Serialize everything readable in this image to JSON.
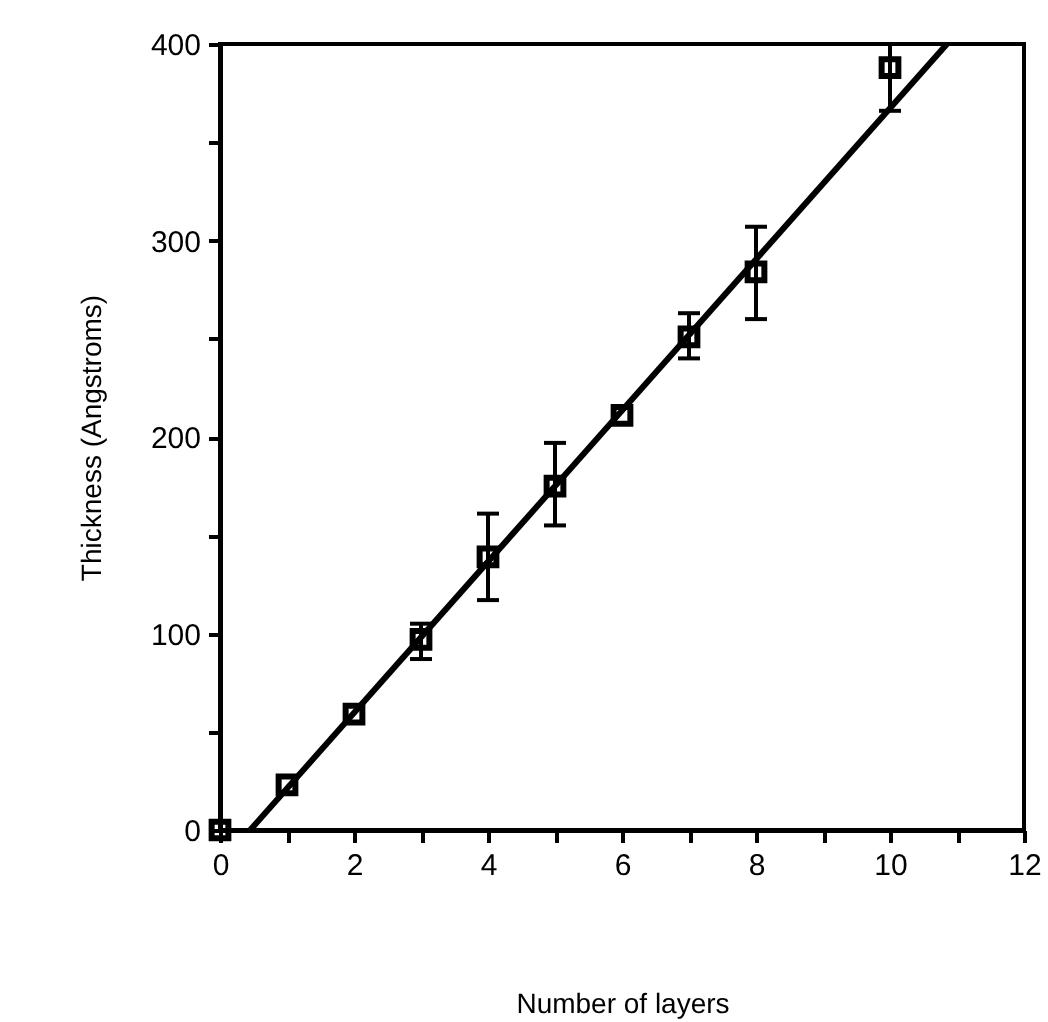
{
  "chart_data": {
    "type": "scatter",
    "xlabel": "Number of layers",
    "ylabel": "Thickness (Angstroms)",
    "x": [
      0,
      1,
      2,
      3,
      4,
      5,
      6,
      7,
      8,
      10
    ],
    "series": [
      {
        "color": "#000000",
        "marker": "square",
        "values": [
          0,
          23,
          59,
          97,
          139,
          175,
          211,
          251,
          284,
          388
        ],
        "errors": [
          null,
          null,
          null,
          [
            87,
            105
          ],
          [
            117,
            161
          ],
          [
            155,
            197
          ],
          null,
          [
            240,
            263
          ],
          [
            260,
            307
          ],
          [
            366,
            400
          ]
        ]
      },
      {
        "type": "line",
        "color": "#000000",
        "x": [
          0.45,
          10.85
        ],
        "values": [
          0,
          400
        ],
        "line_style": "solid"
      }
    ],
    "xlim": [
      0,
      12
    ],
    "xticks": [
      0,
      {
        "value": 1,
        "label": null
      },
      2,
      {
        "value": 3,
        "label": null
      },
      4,
      {
        "value": 5,
        "label": null
      },
      6,
      {
        "value": 7,
        "label": null
      },
      8,
      {
        "value": 9,
        "label": null
      },
      10,
      {
        "value": 11,
        "label": null
      },
      12
    ],
    "ylim": [
      0,
      400
    ],
    "yticks": [
      0,
      {
        "value": 50,
        "label": null
      },
      100,
      {
        "value": 150,
        "label": null
      },
      200,
      {
        "value": 250,
        "label": null
      },
      300,
      {
        "value": 350,
        "label": null
      },
      400
    ],
    "grid": false
  }
}
